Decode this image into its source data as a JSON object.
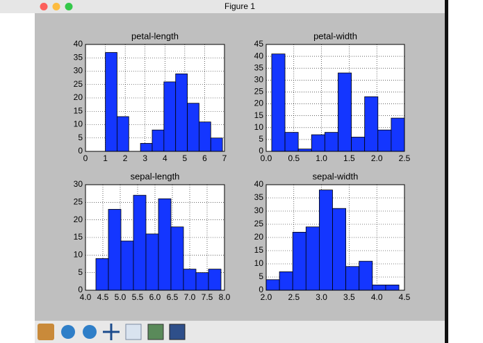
{
  "window": {
    "title": "Figure 1"
  },
  "chart_data": [
    {
      "type": "histogram",
      "title": "petal-length",
      "bins": [
        1.0,
        1.59,
        2.18,
        2.77,
        3.36,
        3.95,
        4.54,
        5.13,
        5.72,
        6.31,
        6.9
      ],
      "values": [
        37,
        13,
        0,
        3,
        8,
        26,
        29,
        18,
        11,
        5
      ],
      "color": "#1436ff",
      "xlim": [
        0,
        7
      ],
      "xticks": [
        0,
        1,
        2,
        3,
        4,
        5,
        6,
        7
      ],
      "ylim": [
        0,
        40
      ],
      "yticks": [
        0,
        5,
        10,
        15,
        20,
        25,
        30,
        35,
        40
      ],
      "grid": true
    },
    {
      "type": "histogram",
      "title": "petal-width",
      "bins": [
        0.1,
        0.34,
        0.58,
        0.82,
        1.06,
        1.3,
        1.54,
        1.78,
        2.02,
        2.26,
        2.5
      ],
      "values": [
        41,
        8,
        1,
        7,
        8,
        33,
        6,
        23,
        9,
        14
      ],
      "color": "#1436ff",
      "xlim": [
        0,
        2.5
      ],
      "xticks": [
        {
          "value": 0,
          "label": "0.0"
        },
        0.5,
        {
          "value": 1,
          "label": "1.0"
        },
        1.5,
        {
          "value": 2,
          "label": "2.0"
        },
        2.5
      ],
      "ylim": [
        0,
        45
      ],
      "yticks": [
        0,
        5,
        10,
        15,
        20,
        25,
        30,
        35,
        40,
        45
      ],
      "grid": true
    },
    {
      "type": "histogram",
      "title": "sepal-length",
      "bins": [
        4.3,
        4.66,
        5.02,
        5.38,
        5.74,
        6.1,
        6.46,
        6.82,
        7.18,
        7.54,
        7.9
      ],
      "values": [
        9,
        23,
        14,
        27,
        16,
        26,
        18,
        6,
        5,
        6
      ],
      "color": "#1436ff",
      "xlim": [
        4,
        8
      ],
      "xticks": [
        {
          "value": 4,
          "label": "4.0"
        },
        4.5,
        {
          "value": 5,
          "label": "5.0"
        },
        5.5,
        {
          "value": 6,
          "label": "6.0"
        },
        6.5,
        {
          "value": 7,
          "label": "7.0"
        },
        7.5,
        {
          "value": 8,
          "label": "8.0"
        }
      ],
      "ylim": [
        0,
        30
      ],
      "yticks": [
        0,
        5,
        10,
        15,
        20,
        25,
        30
      ],
      "grid": true
    },
    {
      "type": "histogram",
      "title": "sepal-width",
      "bins": [
        2.0,
        2.24,
        2.48,
        2.72,
        2.96,
        3.2,
        3.44,
        3.68,
        3.92,
        4.16,
        4.4
      ],
      "values": [
        4,
        7,
        22,
        24,
        38,
        31,
        9,
        11,
        2,
        2
      ],
      "color": "#1436ff",
      "xlim": [
        2,
        4.5
      ],
      "xticks": [
        {
          "value": 2,
          "label": "2.0"
        },
        2.5,
        {
          "value": 3,
          "label": "3.0"
        },
        3.5,
        {
          "value": 4,
          "label": "4.0"
        },
        4.5
      ],
      "ylim": [
        0,
        40
      ],
      "yticks": [
        0,
        5,
        10,
        15,
        20,
        25,
        30,
        35,
        40
      ],
      "grid": true
    }
  ]
}
